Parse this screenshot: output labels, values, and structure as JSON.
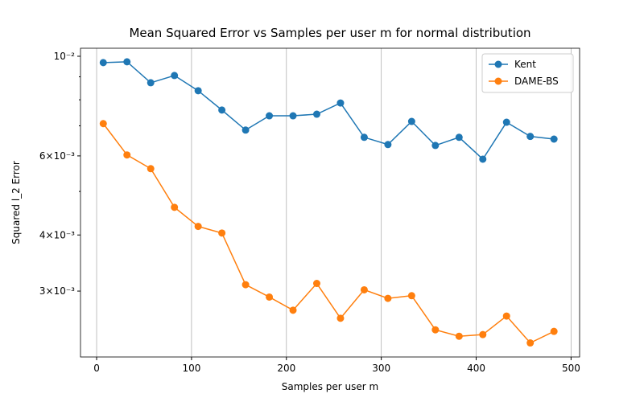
{
  "chart_data": {
    "type": "line",
    "title": "Mean Squared Error vs Samples per user m for normal distribution",
    "xlabel": "Samples per user m",
    "ylabel": "Squared l_2 Error",
    "x": [
      7,
      32,
      57,
      82,
      107,
      132,
      157,
      182,
      207,
      232,
      257,
      282,
      307,
      332,
      357,
      382,
      407,
      432,
      457,
      482
    ],
    "series": [
      {
        "name": "Kent",
        "color": "#1f77b4",
        "values": [
          0.00968,
          0.00972,
          0.00873,
          0.00906,
          0.00838,
          0.00759,
          0.00685,
          0.00737,
          0.00737,
          0.00743,
          0.00787,
          0.0066,
          0.00636,
          0.00716,
          0.00633,
          0.0066,
          0.0059,
          0.00713,
          0.00663,
          0.00654
        ]
      },
      {
        "name": "DAME-BS",
        "color": "#ff7f0e",
        "values": [
          0.00708,
          0.00603,
          0.00562,
          0.00461,
          0.00418,
          0.00404,
          0.0031,
          0.00291,
          0.00272,
          0.00312,
          0.00261,
          0.00302,
          0.00289,
          0.00293,
          0.00246,
          0.00238,
          0.0024,
          0.00264,
          0.0023,
          0.00244
        ]
      }
    ],
    "xlim": [
      -17,
      509
    ],
    "ylim": [
      0.00214,
      0.01042
    ],
    "xticks": [
      0,
      100,
      200,
      300,
      400,
      500
    ],
    "yticks": [
      {
        "value": 0.01,
        "label": "10⁻²"
      },
      {
        "value": 0.006,
        "label": "6×10⁻³"
      },
      {
        "value": 0.004,
        "label": "4×10⁻³"
      },
      {
        "value": 0.003,
        "label": "3×10⁻³"
      }
    ],
    "minor_yticks": [
      0.009,
      0.008,
      0.007,
      0.005
    ],
    "ylog": true,
    "grid": "x",
    "legend": "upper right"
  }
}
